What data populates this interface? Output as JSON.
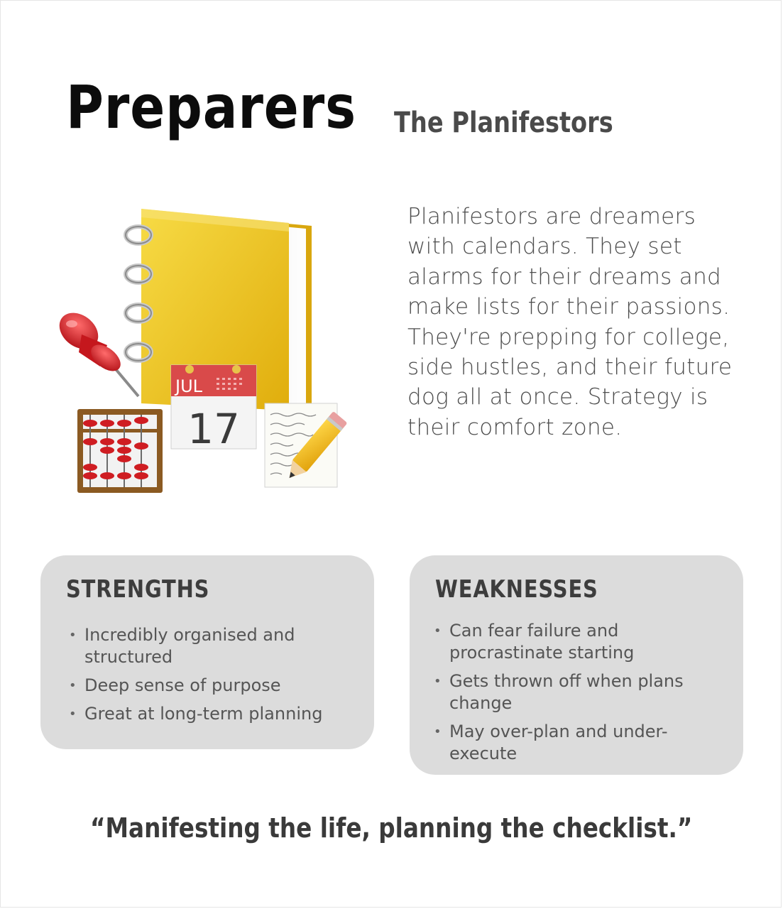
{
  "header": {
    "title": "Preparers",
    "subtitle": "The Planifestors"
  },
  "description": "Planifestors are dreamers with calendars. They set alarms for their dreams and make lists for their passions. They're prepping for college, side hustles, and their future dog all at once. Strategy is their comfort zone.",
  "illustration": {
    "icons": [
      "notebook-icon",
      "pushpin-icon",
      "calendar-icon",
      "abacus-icon",
      "note-pencil-icon"
    ],
    "calendar_month": "JUL",
    "calendar_day": "17"
  },
  "strengths": {
    "heading": "STRENGTHS",
    "items": [
      "Incredibly organised and structured",
      "Deep sense of purpose",
      "Great at long-term planning"
    ]
  },
  "weaknesses": {
    "heading": "WEAKNESSES",
    "items": [
      "Can fear failure and procrastinate starting",
      "Gets thrown off when plans change",
      "May over-plan and under-execute"
    ]
  },
  "quote": "“Manifesting the life, planning the checklist.”",
  "colors": {
    "card_bg": "#dcdcdc",
    "notebook_yellow": "#f2c81b",
    "pin_red": "#d8262b"
  }
}
